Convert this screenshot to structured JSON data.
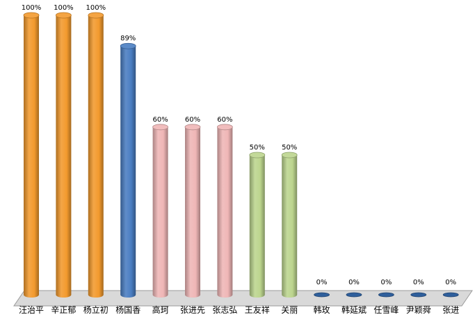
{
  "chart_data": {
    "type": "bar",
    "categories": [
      "汪治平",
      "辛正郁",
      "杨立初",
      "杨国香",
      "高珂",
      "张进先",
      "张志弘",
      "王友祥",
      "关丽",
      "韩玫",
      "韩延斌",
      "任雪峰",
      "尹颖舜",
      "张进"
    ],
    "values": [
      100,
      100,
      100,
      89,
      60,
      60,
      60,
      50,
      50,
      0,
      0,
      0,
      0,
      0
    ],
    "value_labels": [
      "100%",
      "100%",
      "100%",
      "89%",
      "60%",
      "60%",
      "60%",
      "50%",
      "50%",
      "0%",
      "0%",
      "0%",
      "0%",
      "0%"
    ],
    "bar_colors": [
      "#f39a2e",
      "#f39a2e",
      "#f39a2e",
      "#4a7ec2",
      "#efb6b6",
      "#efb6b6",
      "#efb6b6",
      "#bcd58e",
      "#bcd58e",
      "#2f5f9c",
      "#2f5f9c",
      "#2f5f9c",
      "#2f5f9c",
      "#2f5f9c"
    ],
    "ylim": [
      0,
      100
    ],
    "title": "",
    "xlabel": "",
    "ylabel": "",
    "grid": false,
    "legend": "none"
  }
}
